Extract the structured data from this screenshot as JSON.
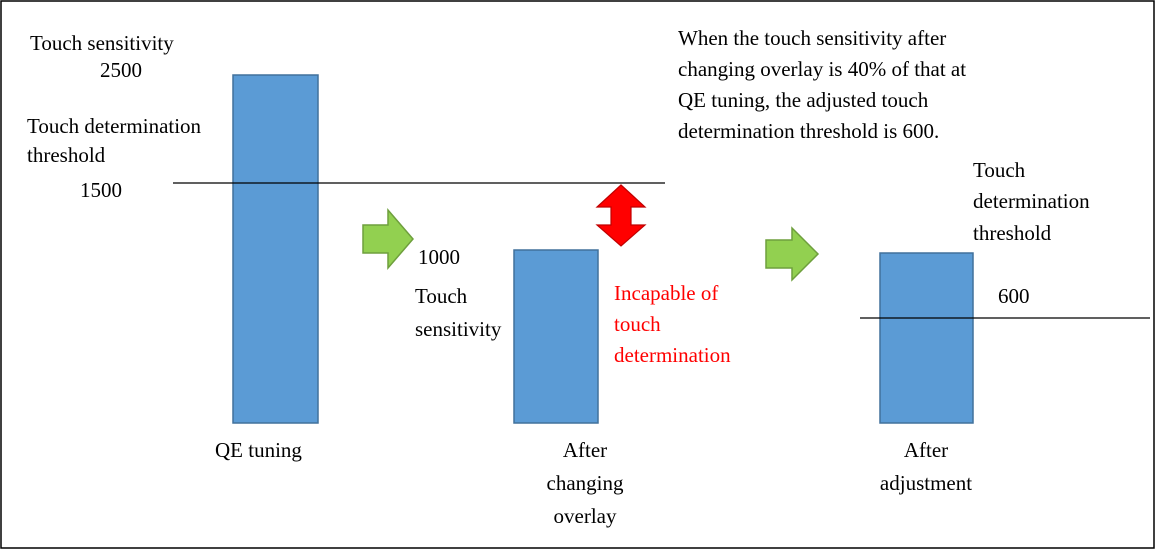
{
  "left": {
    "sensitivity_label": "Touch sensitivity",
    "sensitivity_value": "2500",
    "threshold_label": [
      "Touch determination",
      "threshold"
    ],
    "threshold_value": "1500",
    "caption": "QE tuning"
  },
  "middle": {
    "sensitivity_value": "1000",
    "sensitivity_label": [
      "Touch",
      "sensitivity"
    ],
    "warning": [
      "Incapable of",
      "touch",
      "determination"
    ],
    "caption": [
      "After",
      "changing",
      "overlay"
    ]
  },
  "note": [
    "When the touch sensitivity after",
    "changing overlay is 40% of that at",
    "QE tuning, the adjusted touch",
    "determination threshold is 600."
  ],
  "right": {
    "threshold_label": [
      "Touch",
      "determination",
      "threshold"
    ],
    "threshold_value": "600",
    "caption": [
      "After",
      "adjustment"
    ]
  }
}
